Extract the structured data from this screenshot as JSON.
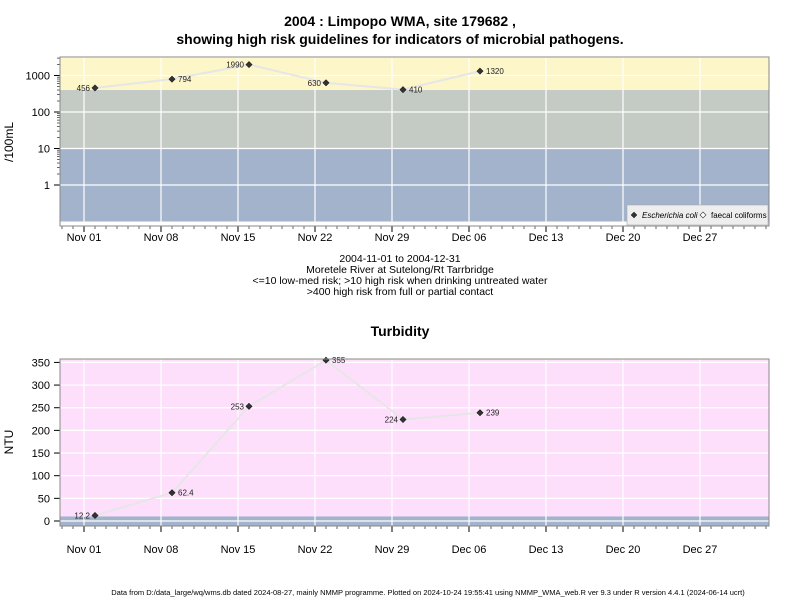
{
  "title": {
    "line1": "2004 : Limpopo WMA, site 179682 ,",
    "line2": "showing high risk guidelines for indicators of microbial pathogens."
  },
  "info": {
    "date_range": "2004-11-01 to 2004-12-31",
    "location": "Moretele River at Sutelong/Rt Tarrbridge",
    "risk1": "<=10 low-med risk; >10 high risk when drinking untreated water",
    "risk2": ">400 high risk from full or partial contact"
  },
  "footer": "Data from D:/data_large/wq/wms.db dated 2024-08-27, mainly NMMP programme. Plotted on 2024-10-24 19:55:41 using NMMP_WMA_web.R ver 9.3 under R version 4.4.1 (2024-06-14 ucrt)",
  "colors": {
    "band_high": "#fdf6c8",
    "band_mid": "#c3cbc4",
    "band_low": "#a3b3cb",
    "turbidity_bg": "#fddffb",
    "turbidity_band": "#a3b3cb",
    "line": "#e6e6e6",
    "point": "#333333"
  },
  "chart_data": [
    {
      "type": "line",
      "ylabel": "/100mL",
      "y_scale": "log",
      "y_ticks": [
        1,
        10,
        100,
        1000
      ],
      "y_tick_labels": [
        "1",
        "10",
        "100",
        "1000"
      ],
      "bands": [
        {
          "from": 400,
          "to": 3000,
          "label": ">400 high risk"
        },
        {
          "from": 10,
          "to": 400,
          "label": ">10 high risk"
        },
        {
          "from": 0.1,
          "to": 10,
          "label": "<=10 low-med risk"
        }
      ],
      "x_ticks": [
        "Nov 01",
        "Nov 08",
        "Nov 15",
        "Nov 22",
        "Nov 29",
        "Dec 06",
        "Dec 13",
        "Dec 20",
        "Dec 27"
      ],
      "x_tick_dates": [
        "2004-11-01",
        "2004-11-08",
        "2004-11-15",
        "2004-11-22",
        "2004-11-29",
        "2004-12-06",
        "2004-12-13",
        "2004-12-20",
        "2004-12-27"
      ],
      "series": [
        {
          "name": "Escherichia coli",
          "points": [
            {
              "x": "2004-11-02",
              "y": 456,
              "label": "456",
              "label_side": "left"
            },
            {
              "x": "2004-11-09",
              "y": 794,
              "label": "794",
              "label_side": "right"
            },
            {
              "x": "2004-11-16",
              "y": 1990,
              "label": "1990",
              "label_side": "left"
            },
            {
              "x": "2004-11-23",
              "y": 630,
              "label": "630",
              "label_side": "left"
            },
            {
              "x": "2004-11-30",
              "y": 410,
              "label": "410",
              "label_side": "right"
            },
            {
              "x": "2004-12-07",
              "y": 1320,
              "label": "1320",
              "label_side": "right"
            }
          ]
        },
        {
          "name": "faecal coliforms",
          "points": []
        }
      ],
      "legend": {
        "position": "bottom-right",
        "entries": [
          "Escherichia coli",
          "faecal coliforms"
        ]
      }
    },
    {
      "type": "line",
      "title": "Turbidity",
      "ylabel": "NTU",
      "y_ticks": [
        0,
        50,
        100,
        150,
        200,
        250,
        300,
        350
      ],
      "y_tick_labels": [
        "0",
        "50",
        "100",
        "150",
        "200",
        "250",
        "300",
        "350"
      ],
      "x_ticks": [
        "Nov 01",
        "Nov 08",
        "Nov 15",
        "Nov 22",
        "Nov 29",
        "Dec 06",
        "Dec 13",
        "Dec 20",
        "Dec 27"
      ],
      "x_tick_dates": [
        "2004-11-01",
        "2004-11-08",
        "2004-11-15",
        "2004-11-22",
        "2004-11-29",
        "2004-12-06",
        "2004-12-13",
        "2004-12-20",
        "2004-12-27"
      ],
      "series": [
        {
          "points": [
            {
              "x": "2004-11-02",
              "y": 12.2,
              "label": "12.2",
              "label_side": "left"
            },
            {
              "x": "2004-11-09",
              "y": 62.4,
              "label": "62.4",
              "label_side": "right"
            },
            {
              "x": "2004-11-16",
              "y": 253,
              "label": "253",
              "label_side": "left"
            },
            {
              "x": "2004-11-23",
              "y": 355,
              "label": "355",
              "label_side": "right"
            },
            {
              "x": "2004-11-30",
              "y": 224,
              "label": "224",
              "label_side": "left"
            },
            {
              "x": "2004-12-07",
              "y": 239,
              "label": "239",
              "label_side": "right"
            }
          ]
        }
      ]
    }
  ]
}
